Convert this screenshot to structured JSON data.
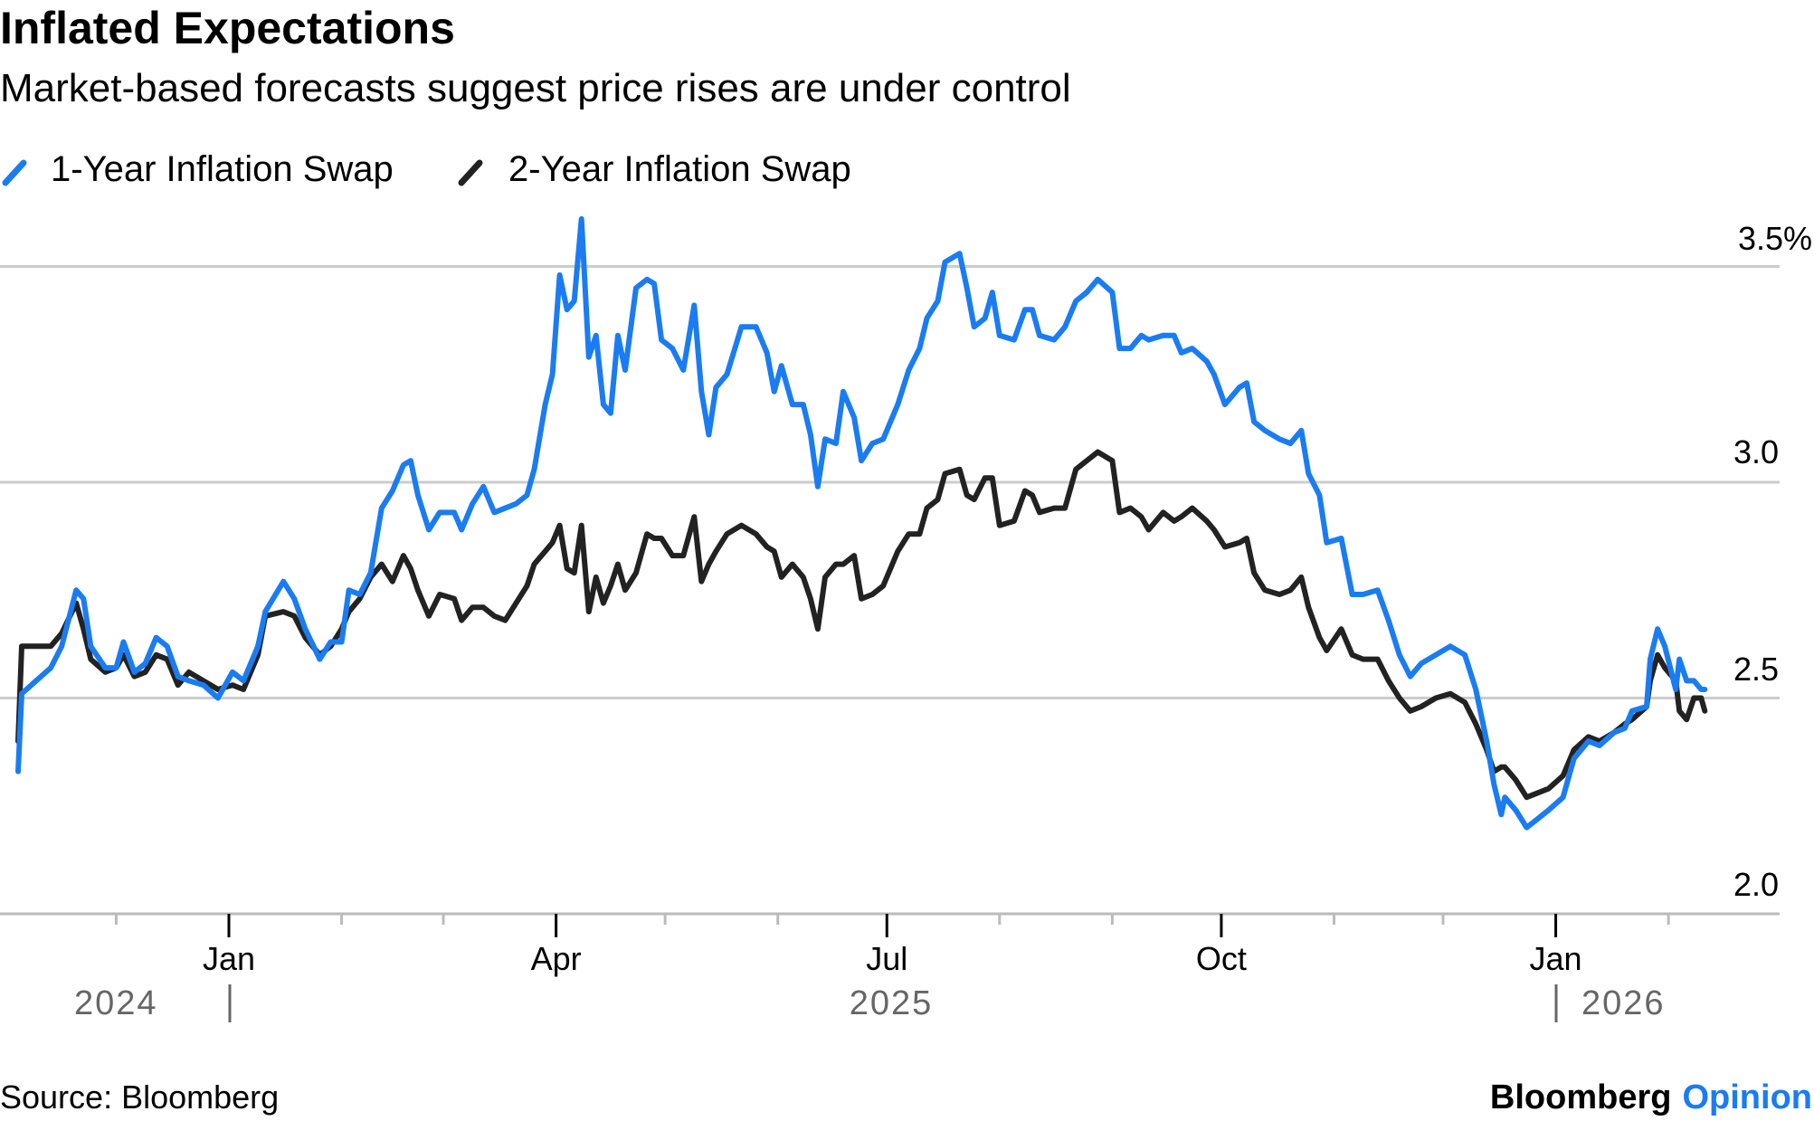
{
  "header": {
    "title": "Inflated Expectations",
    "subtitle": "Market-based forecasts suggest price rises are under control"
  },
  "footer": {
    "source": "Source: Bloomberg",
    "brand_main": "Bloomberg",
    "brand_accent": "Opinion"
  },
  "colors": {
    "series1": "#1a7cf2",
    "series2": "#222222",
    "grid": "#cccccc",
    "accent": "#1a7cf2"
  },
  "chart_data": {
    "type": "line",
    "title": "Inflated Expectations",
    "subtitle": "Market-based forecasts suggest price rises are under control",
    "x_unit": "days since 2025-01-01",
    "ylabel": "",
    "ylim": [
      2.0,
      3.6
    ],
    "yticks": [
      {
        "value": 3.5,
        "label": "3.5%"
      },
      {
        "value": 3.0,
        "label": "3.0"
      },
      {
        "value": 2.5,
        "label": "2.5"
      },
      {
        "value": 2.0,
        "label": "2.0"
      }
    ],
    "xticks_minor_days": [
      -31,
      31,
      59,
      120,
      151,
      212,
      243,
      304,
      334,
      396
    ],
    "xticks": [
      {
        "day": 0,
        "label": "Jan"
      },
      {
        "day": 90,
        "label": "Apr"
      },
      {
        "day": 181,
        "label": "Jul"
      },
      {
        "day": 273,
        "label": "Oct"
      },
      {
        "day": 365,
        "label": "Jan"
      }
    ],
    "year_labels": [
      {
        "label": "2024",
        "separator_day": 0,
        "side": "left"
      },
      {
        "label": "2025",
        "center_day": 182
      },
      {
        "label": "2026",
        "separator_day": 365,
        "side": "right"
      }
    ],
    "grid": true,
    "legend_position": "top-left",
    "x": [
      -58,
      -57,
      -53,
      -49,
      -46,
      -42,
      -40,
      -38,
      -34,
      -31,
      -29,
      -26,
      -23,
      -20,
      -17,
      -14,
      -11,
      -7,
      -3,
      1,
      4,
      8,
      10,
      15,
      18,
      21,
      25,
      28,
      31,
      33,
      36,
      39,
      42,
      45,
      48,
      50,
      52,
      55,
      58,
      62,
      64,
      67,
      70,
      73,
      76,
      79,
      82,
      84,
      87,
      89,
      91,
      93,
      95,
      97,
      99,
      101,
      103,
      105,
      107,
      109,
      112,
      115,
      117,
      119,
      122,
      125,
      128,
      130,
      132,
      134,
      137,
      141,
      145,
      148,
      150,
      152,
      155,
      158,
      160,
      162,
      164,
      167,
      169,
      172,
      174,
      177,
      180,
      184,
      187,
      190,
      192,
      195,
      197,
      201,
      203,
      205,
      208,
      210,
      212,
      216,
      219,
      221,
      223,
      227,
      230,
      233,
      236,
      239,
      243,
      245,
      248,
      251,
      253,
      257,
      260,
      262,
      265,
      269,
      271,
      274,
      278,
      280,
      282,
      285,
      289,
      292,
      295,
      297,
      300,
      302,
      306,
      309,
      312,
      316,
      319,
      322,
      325,
      328,
      332,
      336,
      340,
      343,
      346,
      348,
      350,
      351,
      354,
      357,
      360,
      363,
      367,
      370,
      374,
      377,
      381,
      384,
      386,
      390,
      391,
      393,
      395,
      398,
      399,
      401,
      403,
      405,
      406
    ],
    "series": [
      {
        "name": "1-Year Inflation Swap",
        "color": "#1a7cf2",
        "values": [
          2.33,
          2.51,
          2.54,
          2.57,
          2.62,
          2.75,
          2.73,
          2.62,
          2.57,
          2.57,
          2.63,
          2.56,
          2.58,
          2.64,
          2.62,
          2.55,
          2.54,
          2.53,
          2.5,
          2.56,
          2.54,
          2.62,
          2.7,
          2.77,
          2.73,
          2.66,
          2.59,
          2.63,
          2.63,
          2.75,
          2.74,
          2.79,
          2.94,
          2.98,
          3.04,
          3.05,
          2.97,
          2.89,
          2.93,
          2.93,
          2.89,
          2.95,
          2.99,
          2.93,
          2.94,
          2.95,
          2.97,
          3.03,
          3.18,
          3.25,
          3.48,
          3.4,
          3.42,
          3.61,
          3.29,
          3.34,
          3.18,
          3.16,
          3.34,
          3.26,
          3.45,
          3.47,
          3.46,
          3.33,
          3.31,
          3.26,
          3.41,
          3.21,
          3.11,
          3.22,
          3.25,
          3.36,
          3.36,
          3.3,
          3.21,
          3.27,
          3.18,
          3.18,
          3.11,
          2.99,
          3.1,
          3.09,
          3.21,
          3.15,
          3.05,
          3.09,
          3.1,
          3.18,
          3.26,
          3.31,
          3.38,
          3.42,
          3.51,
          3.53,
          3.45,
          3.36,
          3.38,
          3.44,
          3.34,
          3.33,
          3.4,
          3.4,
          3.34,
          3.33,
          3.36,
          3.42,
          3.44,
          3.47,
          3.44,
          3.31,
          3.31,
          3.34,
          3.33,
          3.34,
          3.34,
          3.3,
          3.31,
          3.28,
          3.25,
          3.18,
          3.22,
          3.23,
          3.14,
          3.12,
          3.1,
          3.09,
          3.12,
          3.02,
          2.97,
          2.86,
          2.87,
          2.74,
          2.74,
          2.75,
          2.68,
          2.6,
          2.55,
          2.58,
          2.6,
          2.62,
          2.6,
          2.52,
          2.4,
          2.3,
          2.23,
          2.27,
          2.24,
          2.2,
          2.22,
          2.24,
          2.27,
          2.36,
          2.4,
          2.39,
          2.42,
          2.43,
          2.47,
          2.48,
          2.59,
          2.66,
          2.62,
          2.52,
          2.59,
          2.54,
          2.54,
          2.52,
          2.52
        ]
      },
      {
        "name": "2-Year Inflation Swap",
        "color": "#222222",
        "values": [
          2.4,
          2.62,
          2.62,
          2.62,
          2.65,
          2.72,
          2.66,
          2.59,
          2.56,
          2.57,
          2.6,
          2.55,
          2.56,
          2.6,
          2.59,
          2.53,
          2.56,
          2.54,
          2.52,
          2.53,
          2.52,
          2.6,
          2.69,
          2.7,
          2.69,
          2.64,
          2.6,
          2.62,
          2.66,
          2.7,
          2.73,
          2.78,
          2.81,
          2.77,
          2.83,
          2.8,
          2.75,
          2.69,
          2.74,
          2.73,
          2.68,
          2.71,
          2.71,
          2.69,
          2.68,
          2.72,
          2.76,
          2.81,
          2.84,
          2.86,
          2.9,
          2.8,
          2.79,
          2.9,
          2.7,
          2.78,
          2.72,
          2.76,
          2.81,
          2.75,
          2.79,
          2.88,
          2.87,
          2.87,
          2.83,
          2.83,
          2.92,
          2.77,
          2.81,
          2.84,
          2.88,
          2.9,
          2.88,
          2.85,
          2.84,
          2.78,
          2.81,
          2.78,
          2.73,
          2.66,
          2.78,
          2.81,
          2.81,
          2.83,
          2.73,
          2.74,
          2.76,
          2.84,
          2.88,
          2.88,
          2.94,
          2.96,
          3.02,
          3.03,
          2.97,
          2.96,
          3.01,
          3.01,
          2.9,
          2.91,
          2.98,
          2.97,
          2.93,
          2.94,
          2.94,
          3.03,
          3.05,
          3.07,
          3.05,
          2.93,
          2.94,
          2.92,
          2.89,
          2.93,
          2.91,
          2.92,
          2.94,
          2.91,
          2.89,
          2.85,
          2.86,
          2.87,
          2.79,
          2.75,
          2.74,
          2.75,
          2.78,
          2.71,
          2.64,
          2.61,
          2.66,
          2.6,
          2.59,
          2.59,
          2.54,
          2.5,
          2.47,
          2.48,
          2.5,
          2.51,
          2.49,
          2.44,
          2.38,
          2.33,
          2.34,
          2.34,
          2.31,
          2.27,
          2.28,
          2.29,
          2.32,
          2.38,
          2.41,
          2.4,
          2.42,
          2.44,
          2.45,
          2.48,
          2.54,
          2.6,
          2.57,
          2.54,
          2.47,
          2.45,
          2.5,
          2.5,
          2.47
        ]
      }
    ]
  }
}
